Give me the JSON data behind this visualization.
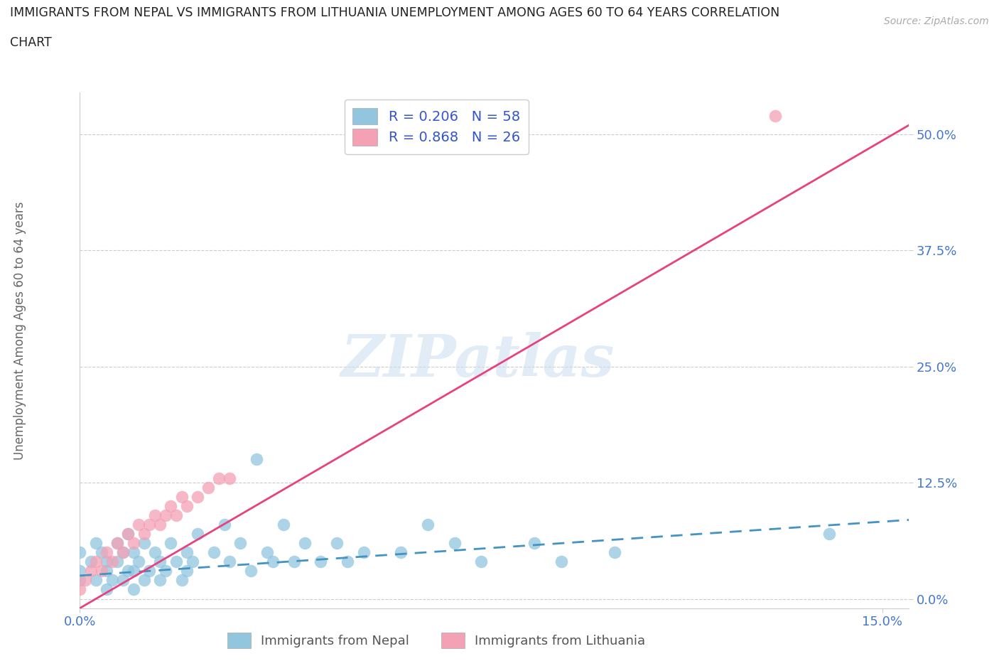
{
  "title_line1": "IMMIGRANTS FROM NEPAL VS IMMIGRANTS FROM LITHUANIA UNEMPLOYMENT AMONG AGES 60 TO 64 YEARS CORRELATION",
  "title_line2": "CHART",
  "source_text": "Source: ZipAtlas.com",
  "ylabel": "Unemployment Among Ages 60 to 64 years",
  "xlabel_nepal": "Immigrants from Nepal",
  "xlabel_lithuania": "Immigrants from Lithuania",
  "xlim": [
    0.0,
    0.155
  ],
  "ylim": [
    -0.01,
    0.545
  ],
  "yticks": [
    0.0,
    0.125,
    0.25,
    0.375,
    0.5
  ],
  "ytick_labels": [
    "0.0%",
    "12.5%",
    "25.0%",
    "37.5%",
    "50.0%"
  ],
  "xtick_positions": [
    0.0,
    0.15
  ],
  "xtick_labels": [
    "0.0%",
    "15.0%"
  ],
  "nepal_color": "#92c5de",
  "lithuania_color": "#f4a0b5",
  "nepal_line_color": "#4393c3",
  "lithuania_line_color": "#e8417e",
  "R_nepal": 0.206,
  "N_nepal": 58,
  "R_lithuania": 0.868,
  "N_lithuania": 26,
  "legend_text_color": "#3355cc",
  "tick_color": "#4477cc",
  "watermark_color": "#cde0f0",
  "background_color": "#ffffff",
  "nepal_scatter_x": [
    0.0,
    0.0,
    0.0,
    0.002,
    0.003,
    0.003,
    0.004,
    0.005,
    0.005,
    0.005,
    0.006,
    0.007,
    0.007,
    0.008,
    0.008,
    0.009,
    0.009,
    0.01,
    0.01,
    0.01,
    0.011,
    0.012,
    0.012,
    0.013,
    0.014,
    0.015,
    0.015,
    0.016,
    0.017,
    0.018,
    0.019,
    0.02,
    0.02,
    0.021,
    0.022,
    0.025,
    0.027,
    0.028,
    0.03,
    0.032,
    0.033,
    0.035,
    0.036,
    0.038,
    0.04,
    0.042,
    0.045,
    0.048,
    0.05,
    0.053,
    0.06,
    0.065,
    0.07,
    0.075,
    0.085,
    0.09,
    0.1,
    0.14
  ],
  "nepal_scatter_y": [
    0.02,
    0.03,
    0.05,
    0.04,
    0.02,
    0.06,
    0.05,
    0.01,
    0.03,
    0.04,
    0.02,
    0.04,
    0.06,
    0.02,
    0.05,
    0.03,
    0.07,
    0.01,
    0.03,
    0.05,
    0.04,
    0.02,
    0.06,
    0.03,
    0.05,
    0.02,
    0.04,
    0.03,
    0.06,
    0.04,
    0.02,
    0.03,
    0.05,
    0.04,
    0.07,
    0.05,
    0.08,
    0.04,
    0.06,
    0.03,
    0.15,
    0.05,
    0.04,
    0.08,
    0.04,
    0.06,
    0.04,
    0.06,
    0.04,
    0.05,
    0.05,
    0.08,
    0.06,
    0.04,
    0.06,
    0.04,
    0.05,
    0.07
  ],
  "lithuania_scatter_x": [
    0.0,
    0.001,
    0.002,
    0.003,
    0.004,
    0.005,
    0.006,
    0.007,
    0.008,
    0.009,
    0.01,
    0.011,
    0.012,
    0.013,
    0.014,
    0.015,
    0.016,
    0.017,
    0.018,
    0.019,
    0.02,
    0.022,
    0.024,
    0.026,
    0.028,
    0.13
  ],
  "lithuania_scatter_y": [
    0.01,
    0.02,
    0.03,
    0.04,
    0.03,
    0.05,
    0.04,
    0.06,
    0.05,
    0.07,
    0.06,
    0.08,
    0.07,
    0.08,
    0.09,
    0.08,
    0.09,
    0.1,
    0.09,
    0.11,
    0.1,
    0.11,
    0.12,
    0.13,
    0.13,
    0.52
  ],
  "nepal_line_x": [
    0.0,
    0.155
  ],
  "nepal_line_y": [
    0.025,
    0.085
  ],
  "lithuania_line_x": [
    0.0,
    0.155
  ],
  "lithuania_line_y": [
    -0.01,
    0.51
  ]
}
